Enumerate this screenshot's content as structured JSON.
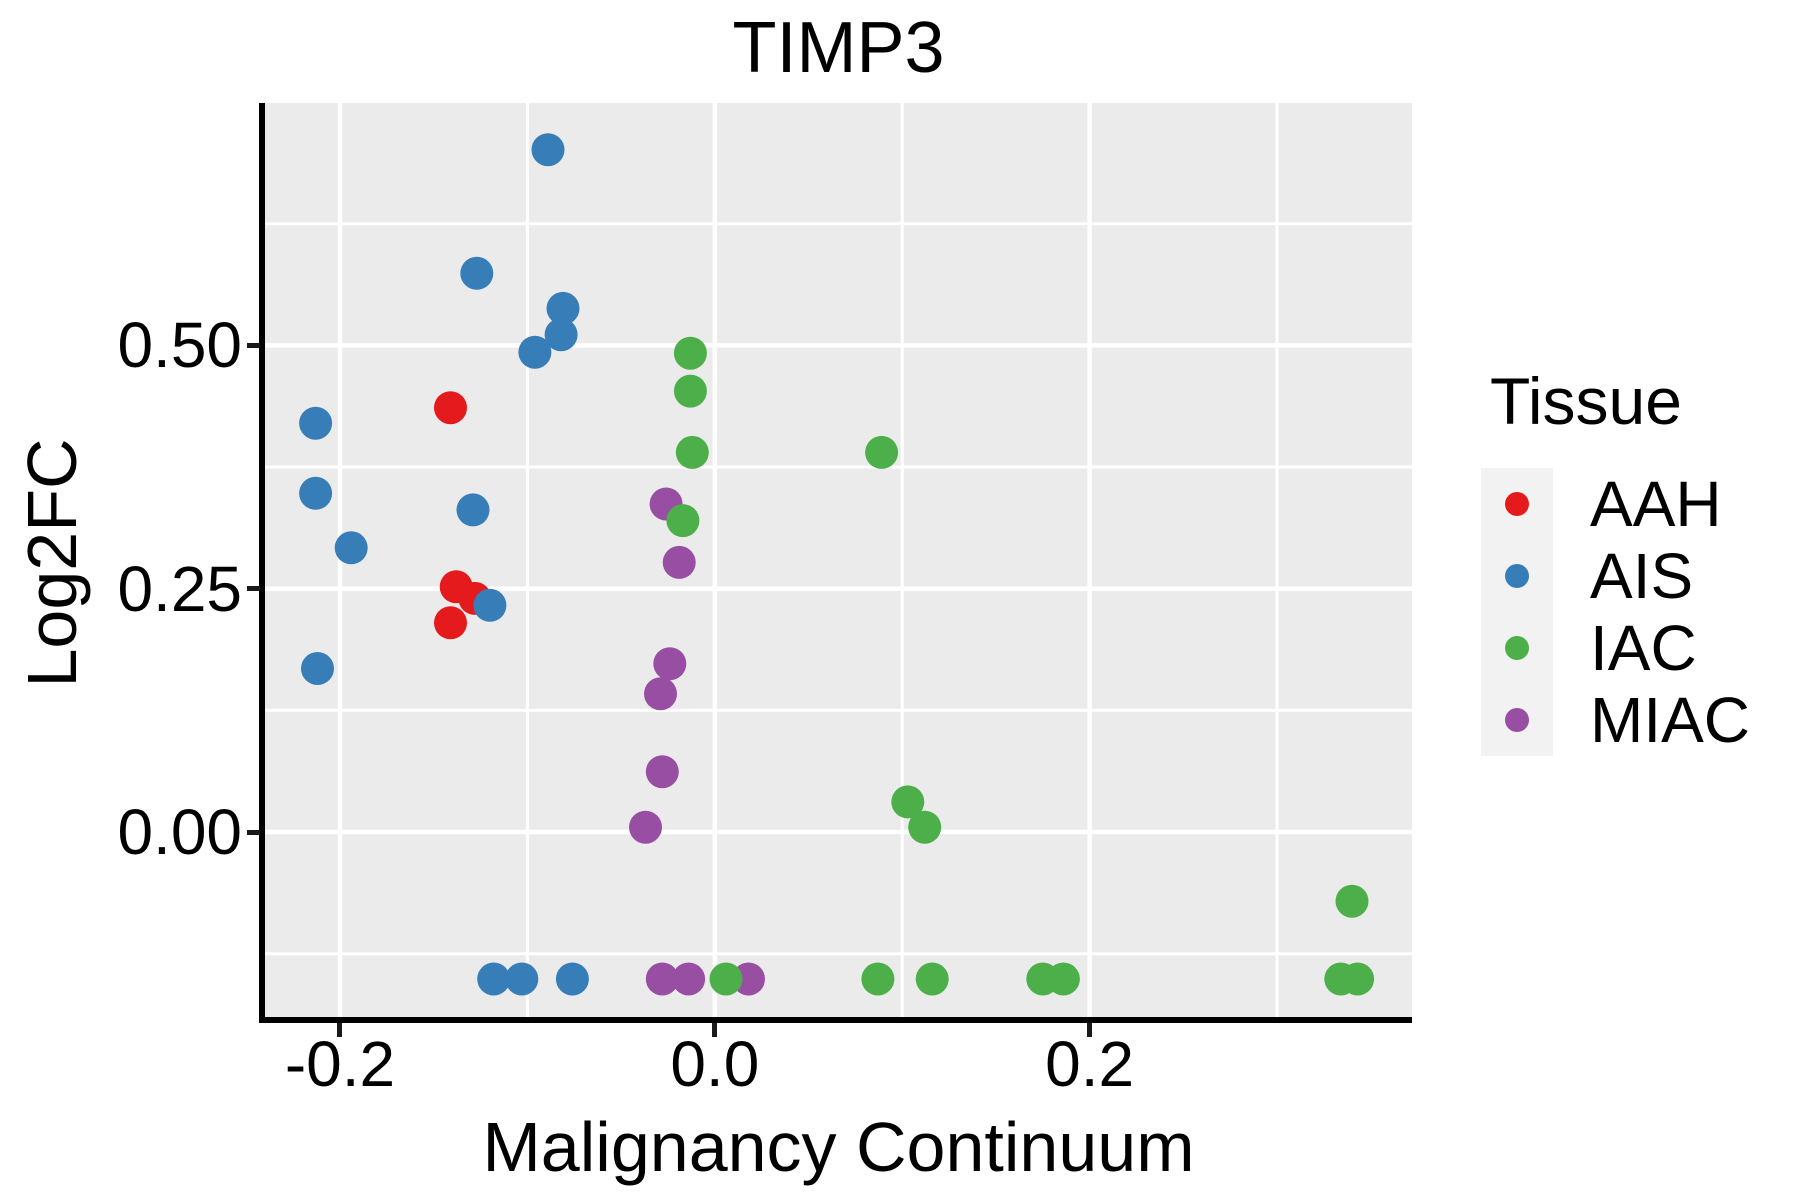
{
  "title": "TIMP3",
  "axes": {
    "x": {
      "title": "Malignancy Continuum",
      "tick_labels": [
        "-0.2",
        "0.0",
        "0.2"
      ]
    },
    "y": {
      "title": "Log2FC",
      "tick_labels": [
        "0.00",
        "0.25",
        "0.50"
      ]
    }
  },
  "legend": {
    "title": "Tissue",
    "items": [
      {
        "label": "AAH",
        "color": "#E41A1C"
      },
      {
        "label": "AIS",
        "color": "#377EB8"
      },
      {
        "label": "IAC",
        "color": "#4DAF4A"
      },
      {
        "label": "MIAC",
        "color": "#984EA3"
      }
    ]
  },
  "colors": {
    "panel_bg": "#EBEBEB",
    "grid": "#FFFFFF",
    "legend_key_bg": "#F2F2F2",
    "text": "#000000",
    "aah": "#E41A1C",
    "ais": "#377EB8",
    "iac": "#4DAF4A",
    "miac": "#984EA3"
  },
  "chart_data": {
    "type": "scatter",
    "title": "TIMP3",
    "xlabel": "Malignancy Continuum",
    "ylabel": "Log2FC",
    "xlim": [
      -0.24,
      0.372
    ],
    "ylim": [
      -0.19,
      0.749
    ],
    "grid": true,
    "legend_position": "right",
    "legend_title": "Tissue",
    "x_major_ticks": [
      -0.2,
      0.0,
      0.2
    ],
    "x_tick_labels": [
      "-0.2",
      "0.0",
      "0.2"
    ],
    "x_minor_gridlines": [
      -0.1,
      0.1,
      0.3
    ],
    "y_major_ticks": [
      0.0,
      0.25,
      0.5
    ],
    "y_tick_labels": [
      "0.00",
      "0.25",
      "0.50"
    ],
    "y_minor_gridlines": [
      -0.125,
      0.125,
      0.375,
      0.625
    ],
    "point_radius_px": 16.5,
    "series": [
      {
        "name": "AAH",
        "color": "#E41A1C",
        "points": [
          [
            -0.141,
            0.436
          ],
          [
            -0.138,
            0.252
          ],
          [
            -0.128,
            0.24
          ],
          [
            -0.141,
            0.215
          ]
        ]
      },
      {
        "name": "AIS",
        "color": "#377EB8",
        "points": [
          [
            -0.089,
            0.701
          ],
          [
            -0.127,
            0.574
          ],
          [
            -0.081,
            0.538
          ],
          [
            -0.082,
            0.511
          ],
          [
            -0.096,
            0.493
          ],
          [
            -0.213,
            0.42
          ],
          [
            -0.213,
            0.348
          ],
          [
            -0.129,
            0.331
          ],
          [
            -0.194,
            0.292
          ],
          [
            -0.12,
            0.233
          ],
          [
            -0.212,
            0.168
          ],
          [
            -0.118,
            -0.151
          ],
          [
            -0.103,
            -0.151
          ],
          [
            -0.076,
            -0.151
          ]
        ]
      },
      {
        "name": "MIAC",
        "color": "#984EA3",
        "points": [
          [
            -0.026,
            0.337
          ],
          [
            -0.019,
            0.277
          ],
          [
            -0.024,
            0.173
          ],
          [
            -0.029,
            0.142
          ],
          [
            -0.028,
            0.062
          ],
          [
            -0.037,
            0.005
          ],
          [
            -0.028,
            -0.151
          ],
          [
            -0.014,
            -0.151
          ],
          [
            0.018,
            -0.151
          ]
        ]
      },
      {
        "name": "IAC",
        "color": "#4DAF4A",
        "points": [
          [
            -0.013,
            0.492
          ],
          [
            -0.013,
            0.453
          ],
          [
            -0.012,
            0.39
          ],
          [
            0.089,
            0.39
          ],
          [
            -0.017,
            0.32
          ],
          [
            0.103,
            0.031
          ],
          [
            0.112,
            0.005
          ],
          [
            0.34,
            -0.071
          ],
          [
            0.006,
            -0.151
          ],
          [
            0.087,
            -0.151
          ],
          [
            0.116,
            -0.151
          ],
          [
            0.175,
            -0.151
          ],
          [
            0.186,
            -0.151
          ],
          [
            0.334,
            -0.151
          ],
          [
            0.343,
            -0.151
          ]
        ]
      }
    ]
  }
}
